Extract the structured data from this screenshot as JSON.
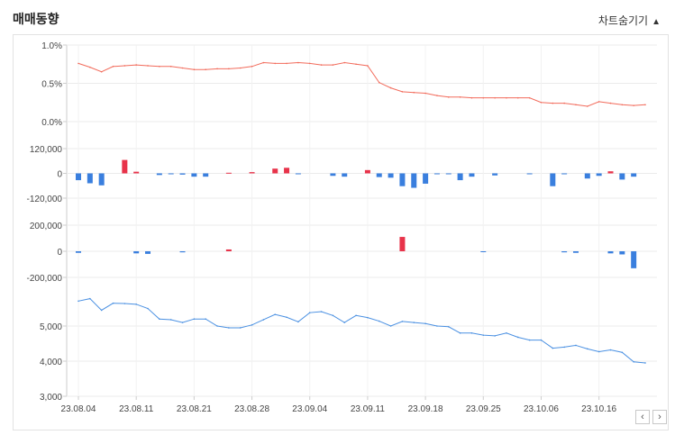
{
  "header": {
    "title": "매매동향",
    "toggle_label": "차트숨기기",
    "toggle_icon": "triangle-up-icon"
  },
  "nav": {
    "prev_icon": "chevron-left-icon",
    "prev_glyph": "‹",
    "next_icon": "chevron-right-icon",
    "next_glyph": "›"
  },
  "colors": {
    "rate": "#f26b5b",
    "pos": "#e8334a",
    "neg": "#3a7fde",
    "price": "#4a90e2",
    "grid": "#ebebeb",
    "axis": "#cccccc"
  },
  "chart_data": [
    {
      "type": "line",
      "ylim": [
        0,
        1.0
      ],
      "yticks": [
        "0.0%",
        "0.5%",
        "1.0%"
      ],
      "x": [
        "23.08.04",
        "23.08.07",
        "23.08.08",
        "23.08.09",
        "23.08.10",
        "23.08.11",
        "23.08.14",
        "23.08.16",
        "23.08.17",
        "23.08.18",
        "23.08.21",
        "23.08.22",
        "23.08.23",
        "23.08.24",
        "23.08.25",
        "23.08.28",
        "23.08.29",
        "23.08.30",
        "23.08.31",
        "23.09.01",
        "23.09.04",
        "23.09.05",
        "23.09.06",
        "23.09.07",
        "23.09.08",
        "23.09.11",
        "23.09.12",
        "23.09.13",
        "23.09.14",
        "23.09.15",
        "23.09.18",
        "23.09.19",
        "23.09.20",
        "23.09.21",
        "23.09.22",
        "23.09.25",
        "23.09.26",
        "23.09.27",
        "23.10.04",
        "23.10.05",
        "23.10.06",
        "23.10.10",
        "23.10.11",
        "23.10.12",
        "23.10.13",
        "23.10.16",
        "23.10.17",
        "23.10.18",
        "23.10.19",
        "23.10.20"
      ],
      "values": [
        0.76,
        0.71,
        0.65,
        0.72,
        0.73,
        0.74,
        0.73,
        0.72,
        0.72,
        0.7,
        0.68,
        0.68,
        0.69,
        0.69,
        0.7,
        0.72,
        0.77,
        0.76,
        0.76,
        0.77,
        0.76,
        0.74,
        0.74,
        0.77,
        0.75,
        0.73,
        0.51,
        0.44,
        0.39,
        0.38,
        0.37,
        0.34,
        0.32,
        0.32,
        0.31,
        0.31,
        0.31,
        0.31,
        0.31,
        0.31,
        0.25,
        0.24,
        0.24,
        0.22,
        0.2,
        0.26,
        0.24,
        0.22,
        0.21,
        0.22
      ]
    },
    {
      "type": "bar",
      "ylim": [
        -120000,
        120000
      ],
      "yticks": [
        "-120,000",
        "0",
        "120,000"
      ],
      "values": [
        -33000,
        -48000,
        -58000,
        0,
        65000,
        8000,
        0,
        -8000,
        -4000,
        -6000,
        -16000,
        -16000,
        0,
        3000,
        0,
        6000,
        0,
        23000,
        27000,
        -4000,
        0,
        0,
        -12000,
        -16000,
        0,
        16000,
        -18000,
        -21000,
        -62000,
        -70000,
        -50000,
        -4000,
        -4000,
        -33000,
        -16000,
        0,
        -10000,
        0,
        0,
        -4000,
        0,
        -62000,
        -4000,
        0,
        -25000,
        -12000,
        10000,
        -30000,
        -16000,
        0
      ]
    },
    {
      "type": "bar",
      "ylim": [
        -200000,
        200000
      ],
      "yticks": [
        "-200,000",
        "0",
        "200,000"
      ],
      "values": [
        -12000,
        0,
        0,
        0,
        0,
        -16000,
        -20000,
        0,
        0,
        -8000,
        0,
        0,
        0,
        14000,
        0,
        0,
        0,
        0,
        0,
        0,
        0,
        0,
        0,
        0,
        0,
        0,
        0,
        0,
        110000,
        0,
        0,
        0,
        0,
        0,
        0,
        -4000,
        0,
        0,
        0,
        0,
        0,
        0,
        -8000,
        -12000,
        0,
        0,
        -16000,
        -24000,
        -130000,
        0
      ]
    },
    {
      "type": "line",
      "ylim": [
        3000,
        6000
      ],
      "yticks": [
        "3,000",
        "4,000",
        "5,000"
      ],
      "xticks": [
        "23.08.04",
        "23.08.11",
        "23.08.21",
        "23.08.28",
        "23.09.04",
        "23.09.11",
        "23.09.18",
        "23.09.25",
        "23.10.06",
        "23.10.16"
      ],
      "xtick_index": [
        0,
        5,
        10,
        15,
        20,
        25,
        30,
        35,
        40,
        45
      ],
      "values": [
        5710,
        5780,
        5450,
        5650,
        5640,
        5620,
        5500,
        5200,
        5180,
        5100,
        5200,
        5200,
        5000,
        4950,
        4950,
        5030,
        5180,
        5330,
        5250,
        5120,
        5380,
        5410,
        5300,
        5100,
        5300,
        5240,
        5140,
        5000,
        5130,
        5100,
        5070,
        5000,
        4980,
        4800,
        4800,
        4740,
        4720,
        4800,
        4680,
        4600,
        4600,
        4370,
        4400,
        4450,
        4350,
        4270,
        4320,
        4250,
        3980,
        3950
      ]
    }
  ]
}
